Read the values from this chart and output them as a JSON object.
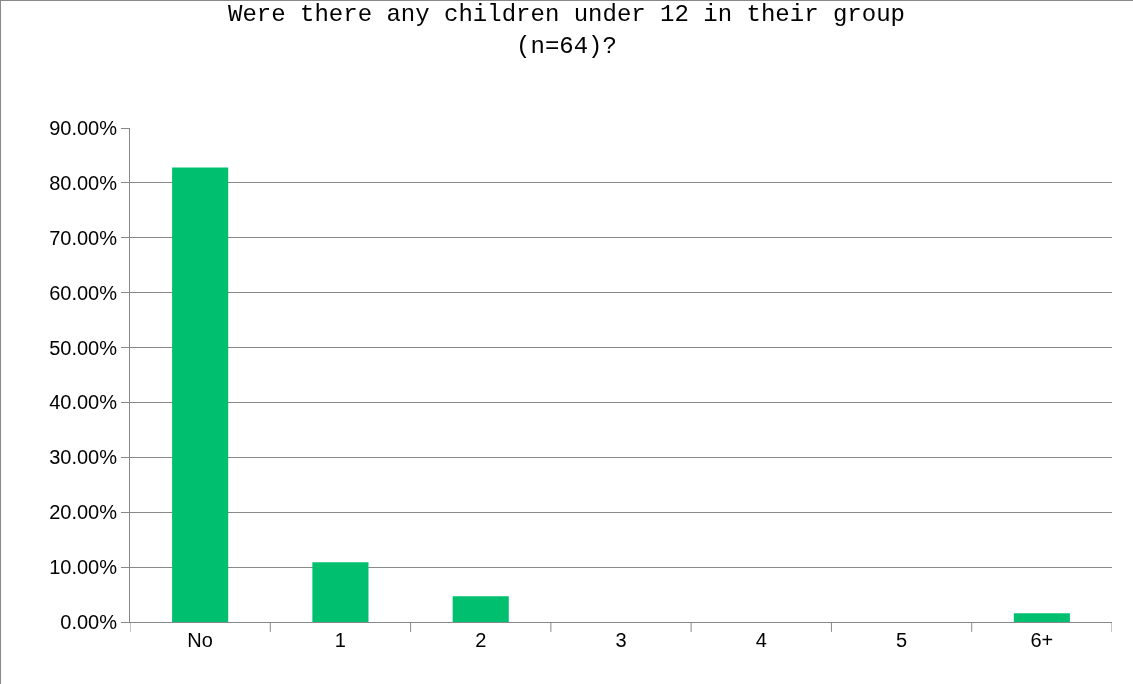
{
  "chart_data": {
    "type": "bar",
    "title": "Were there any children under 12 in their group\n(n=64)?",
    "categories": [
      "No",
      "1",
      "2",
      "3",
      "4",
      "5",
      "6+"
    ],
    "values": [
      82.8,
      10.9,
      4.7,
      0,
      0,
      0,
      1.6
    ],
    "color": "#00c070",
    "ylim": [
      0,
      90
    ],
    "yticks": [
      {
        "value": 0,
        "label": "0.00%"
      },
      {
        "value": 10,
        "label": "10.00%"
      },
      {
        "value": 20,
        "label": "20.00%"
      },
      {
        "value": 30,
        "label": "30.00%"
      },
      {
        "value": 40,
        "label": "40.00%"
      },
      {
        "value": 50,
        "label": "50.00%"
      },
      {
        "value": 60,
        "label": "60.00%"
      },
      {
        "value": 70,
        "label": "70.00%"
      },
      {
        "value": 80,
        "label": "80.00%"
      },
      {
        "value": 90,
        "label": "90.00%"
      }
    ],
    "grid": "y"
  }
}
